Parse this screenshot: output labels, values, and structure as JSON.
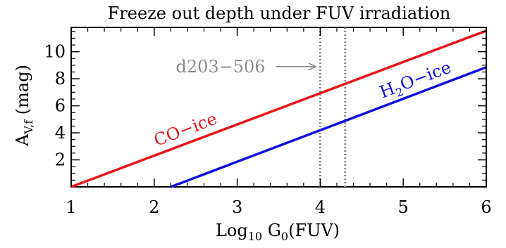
{
  "chart_data": {
    "type": "line",
    "title": "Freeze out depth under FUV irradiation",
    "xlabel": {
      "main": "Log",
      "sub1": "10",
      "mid": " G",
      "sub2": "0",
      "tail": "(FUV)"
    },
    "ylabel": {
      "main": "A",
      "sub": "V,f",
      "tail": " (mag)"
    },
    "xlim": [
      1,
      6
    ],
    "ylim": [
      0,
      11.8
    ],
    "x_ticks": [
      "1",
      "2",
      "3",
      "4",
      "5",
      "6"
    ],
    "y_ticks": [
      "2",
      "4",
      "6",
      "8",
      "10"
    ],
    "series": [
      {
        "name": "CO−ice",
        "color": "#e8141c",
        "x": [
          1.0,
          6.0
        ],
        "y": [
          0.0,
          11.55
        ],
        "label_parts": {
          "main": "CO−ice"
        }
      },
      {
        "name": "H2O−ice",
        "color": "#1010e0",
        "x": [
          2.2,
          6.0
        ],
        "y": [
          0.0,
          8.85
        ],
        "label_parts": {
          "a": "H",
          "sub": "2",
          "b": "O−ice"
        }
      }
    ],
    "vlines": [
      {
        "x": 4.0,
        "color": "#8a8a8a",
        "style": "dotted"
      },
      {
        "x": 4.3,
        "color": "#8a8a8a",
        "style": "dotted"
      }
    ],
    "annotation": {
      "text": "d203−506",
      "color": "#8a8a8a",
      "arrow_to_x": 4.0,
      "y": 8.9
    },
    "grid": false
  }
}
